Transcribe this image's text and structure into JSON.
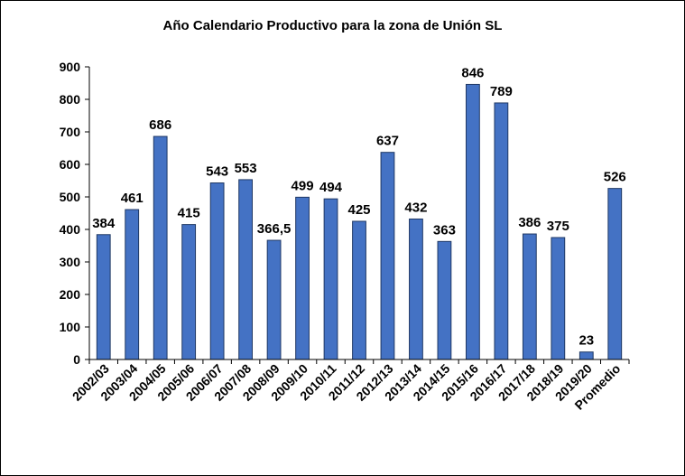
{
  "chart_data": {
    "type": "bar",
    "title": "Año Calendario Productivo para la zona de Unión SL",
    "xlabel": "",
    "ylabel": "",
    "ylim": [
      0,
      900
    ],
    "yticks": [
      0,
      100,
      200,
      300,
      400,
      500,
      600,
      700,
      800,
      900
    ],
    "grid": false,
    "legend": "none",
    "bar_color": "#4472C4",
    "categories": [
      "2002/03",
      "2003/04",
      "2004/05",
      "2005/06",
      "2006/07",
      "2007/08",
      "2008/09",
      "2009/10",
      "2010/11",
      "2011/12",
      "2012/13",
      "2013/14",
      "2014/15",
      "2015/16",
      "2016/17",
      "2017/18",
      "2018/19",
      "2019/20",
      "Promedio"
    ],
    "values": [
      384,
      461,
      686,
      415,
      543,
      553,
      366.5,
      499,
      494,
      425,
      637,
      432,
      363,
      846,
      789,
      386,
      375,
      23,
      526
    ],
    "data_labels": [
      "384",
      "461",
      "686",
      "415",
      "543",
      "553",
      "366,5",
      "499",
      "494",
      "425",
      "637",
      "432",
      "363",
      "846",
      "789",
      "386",
      "375",
      "23",
      "526"
    ]
  }
}
